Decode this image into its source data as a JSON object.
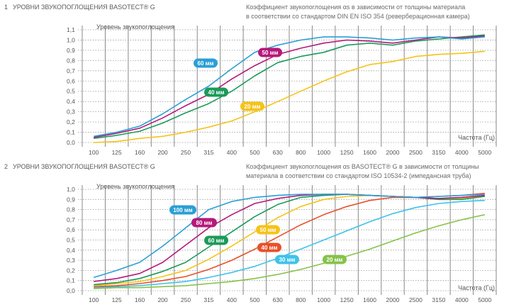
{
  "charts": [
    {
      "number": "1",
      "title": "УРОВНИ ЗВУКОПОГЛОЩЕНИЯ BASOTECT® G",
      "desc_lines": [
        "Коэффициент звукопоглощения αs в зависимости от толщины материала",
        "в соответствии со стандартом DIN EN ISO 354 (реверберационная камера)"
      ]
    },
    {
      "number": "2",
      "title": "УРОВНИ ЗВУКОПОГЛОЩЕНИЯ BASOTECT® G",
      "desc_lines": [
        "Коэффициент звукопоглощения αs BASOTECT® G в зависимости от толщины",
        "материала в соответствии со стандартом ISO 10534-2 (импедансная труба)"
      ]
    }
  ],
  "chart_data": [
    {
      "type": "line",
      "title": "УРОВНИ ЗВУКОПОГЛОЩЕНИЯ BASOTECT® G",
      "ylabel": "Уровень звукопоглощения",
      "xlabel": "Частота (Гц)",
      "x": [
        "100",
        "125",
        "160",
        "200",
        "250",
        "315",
        "400",
        "500",
        "630",
        "800",
        "1000",
        "1250",
        "1600",
        "2000",
        "2500",
        "3150",
        "4000",
        "5000"
      ],
      "y_ticks": [
        "0,0",
        "0,1",
        "0,2",
        "0,3",
        "0,4",
        "0,5",
        "0,6",
        "0,7",
        "0,8",
        "0,9",
        "1,0",
        "1,1"
      ],
      "ylim": [
        0,
        1.1
      ],
      "grid": true,
      "series": [
        {
          "name": "60 мм",
          "color": "#2a9fd6",
          "values": [
            0.06,
            0.1,
            0.16,
            0.28,
            0.42,
            0.55,
            0.72,
            0.88,
            0.95,
            1.0,
            1.03,
            1.03,
            1.02,
            1.0,
            1.02,
            1.03,
            1.01,
            1.03
          ]
        },
        {
          "name": "50 мм",
          "color": "#b5197a",
          "values": [
            0.05,
            0.09,
            0.14,
            0.24,
            0.36,
            0.47,
            0.62,
            0.75,
            0.86,
            0.92,
            0.97,
            1.0,
            0.99,
            0.97,
            1.0,
            1.03,
            1.02,
            1.04
          ]
        },
        {
          "name": "40 мм",
          "color": "#1c9a5a",
          "values": [
            0.04,
            0.07,
            0.11,
            0.19,
            0.29,
            0.38,
            0.5,
            0.65,
            0.78,
            0.84,
            0.88,
            0.95,
            0.97,
            0.95,
            0.99,
            1.01,
            1.03,
            1.05
          ]
        },
        {
          "name": "20 мм",
          "color": "#f5c318",
          "values": [
            0.0,
            0.01,
            0.04,
            0.06,
            0.1,
            0.15,
            0.21,
            0.3,
            0.4,
            0.5,
            0.6,
            0.69,
            0.76,
            0.79,
            0.84,
            0.86,
            0.87,
            0.89
          ]
        }
      ]
    },
    {
      "type": "line",
      "title": "УРОВНИ ЗВУКОПОГЛОЩЕНИЯ BASOTECT® G",
      "ylabel": "Уровень звукопоглощения",
      "xlabel": "Частота (Гц)",
      "x": [
        "100",
        "125",
        "160",
        "200",
        "250",
        "315",
        "400",
        "500",
        "630",
        "800",
        "1000",
        "1250",
        "1600",
        "2000",
        "2500",
        "3150",
        "4000",
        "5000"
      ],
      "y_ticks": [
        "0,0",
        "0,1",
        "0,2",
        "0,3",
        "0,4",
        "0,5",
        "0,6",
        "0,7",
        "0,8",
        "0,9",
        "1,0"
      ],
      "ylim": [
        0,
        1.0
      ],
      "grid": true,
      "series": [
        {
          "name": "100 мм",
          "color": "#2a9fd6",
          "values": [
            0.13,
            0.2,
            0.28,
            0.44,
            0.62,
            0.8,
            0.88,
            0.92,
            0.94,
            0.95,
            0.95,
            0.95,
            0.94,
            0.93,
            0.92,
            0.93,
            0.94,
            0.95
          ]
        },
        {
          "name": "80 мм",
          "color": "#b5197a",
          "values": [
            0.09,
            0.12,
            0.17,
            0.28,
            0.45,
            0.62,
            0.75,
            0.86,
            0.91,
            0.94,
            0.95,
            0.95,
            0.94,
            0.93,
            0.92,
            0.91,
            0.92,
            0.94
          ]
        },
        {
          "name": "60 мм",
          "color": "#1c9a5a",
          "values": [
            0.06,
            0.08,
            0.12,
            0.19,
            0.28,
            0.43,
            0.58,
            0.73,
            0.85,
            0.92,
            0.94,
            0.95,
            0.94,
            0.93,
            0.92,
            0.9,
            0.9,
            0.93
          ]
        },
        {
          "name": "50 мм",
          "color": "#f5c318",
          "values": [
            0.05,
            0.07,
            0.09,
            0.14,
            0.2,
            0.31,
            0.44,
            0.58,
            0.72,
            0.83,
            0.9,
            0.93,
            0.94,
            0.93,
            0.92,
            0.91,
            0.91,
            0.93
          ]
        },
        {
          "name": "40 мм",
          "color": "#e8502a",
          "values": [
            0.04,
            0.05,
            0.07,
            0.1,
            0.14,
            0.21,
            0.3,
            0.41,
            0.53,
            0.65,
            0.75,
            0.83,
            0.89,
            0.92,
            0.92,
            0.93,
            0.94,
            0.96
          ]
        },
        {
          "name": "30 мм",
          "color": "#3fc2ea",
          "values": [
            0.03,
            0.04,
            0.05,
            0.07,
            0.09,
            0.13,
            0.18,
            0.24,
            0.32,
            0.41,
            0.5,
            0.59,
            0.68,
            0.76,
            0.82,
            0.86,
            0.88,
            0.89
          ]
        },
        {
          "name": "20 мм",
          "color": "#86c24a",
          "values": [
            0.02,
            0.03,
            0.03,
            0.04,
            0.05,
            0.07,
            0.09,
            0.12,
            0.16,
            0.21,
            0.27,
            0.34,
            0.41,
            0.49,
            0.57,
            0.64,
            0.7,
            0.75
          ]
        }
      ]
    }
  ]
}
